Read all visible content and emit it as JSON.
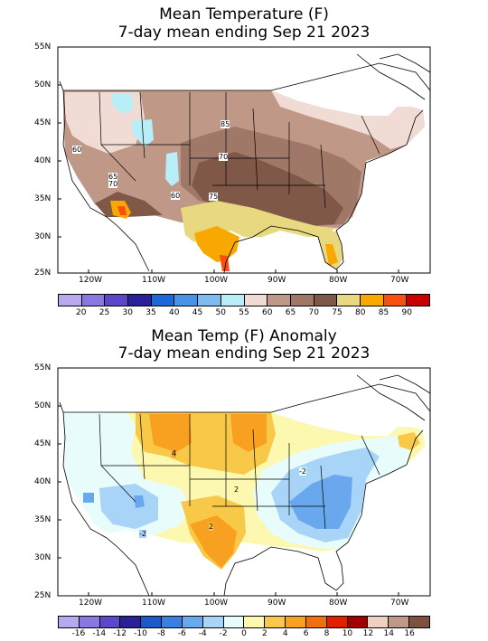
{
  "top": {
    "title_line1": "Mean Temperature (F)",
    "title_line2": "7-day mean ending Sep 21 2023",
    "lat_labels": [
      "55N",
      "50N",
      "45N",
      "40N",
      "35N",
      "30N",
      "25N"
    ],
    "lon_labels": [
      "120W",
      "110W",
      "100W",
      "90W",
      "80W",
      "70W"
    ],
    "colorbar": {
      "colors": [
        "#b8a8ee",
        "#8a78e0",
        "#5a48c8",
        "#2a2098",
        "#1c68d8",
        "#4892e8",
        "#7cbcf0",
        "#b8eef8",
        "#f0dcd4",
        "#c09888",
        "#a07868",
        "#805848",
        "#e8d880",
        "#f8a800",
        "#f85010",
        "#c80000"
      ],
      "labels": [
        "20",
        "25",
        "30",
        "35",
        "40",
        "45",
        "50",
        "55",
        "60",
        "65",
        "70",
        "75",
        "80",
        "85",
        "90"
      ]
    },
    "contour_labels": [
      "85",
      "60",
      "70",
      "65",
      "70",
      "60",
      "75"
    ]
  },
  "bottom": {
    "title_line1": "Mean Temp (F) Anomaly",
    "title_line2": "7-day mean ending Sep 21 2023",
    "lat_labels": [
      "55N",
      "50N",
      "45N",
      "40N",
      "35N",
      "30N",
      "25N"
    ],
    "lon_labels": [
      "120W",
      "110W",
      "100W",
      "90W",
      "80W",
      "70W"
    ],
    "colorbar": {
      "colors": [
        "#b8a8ee",
        "#8a78e0",
        "#5a48c8",
        "#2a2098",
        "#1c58c8",
        "#3a80e0",
        "#6aa8ee",
        "#a8d4f8",
        "#e8fcfc",
        "#fcf8b0",
        "#f8c848",
        "#f8a020",
        "#f07010",
        "#e02000",
        "#a00000",
        "#f0d0c0",
        "#c09888",
        "#805040"
      ],
      "labels": [
        "-16",
        "-14",
        "-12",
        "-10",
        "-8",
        "-6",
        "-4",
        "-2",
        "0",
        "2",
        "4",
        "6",
        "8",
        "10",
        "12",
        "14",
        "16"
      ]
    },
    "contour_labels": [
      "4",
      "2",
      "-2",
      "2",
      "-2"
    ]
  }
}
